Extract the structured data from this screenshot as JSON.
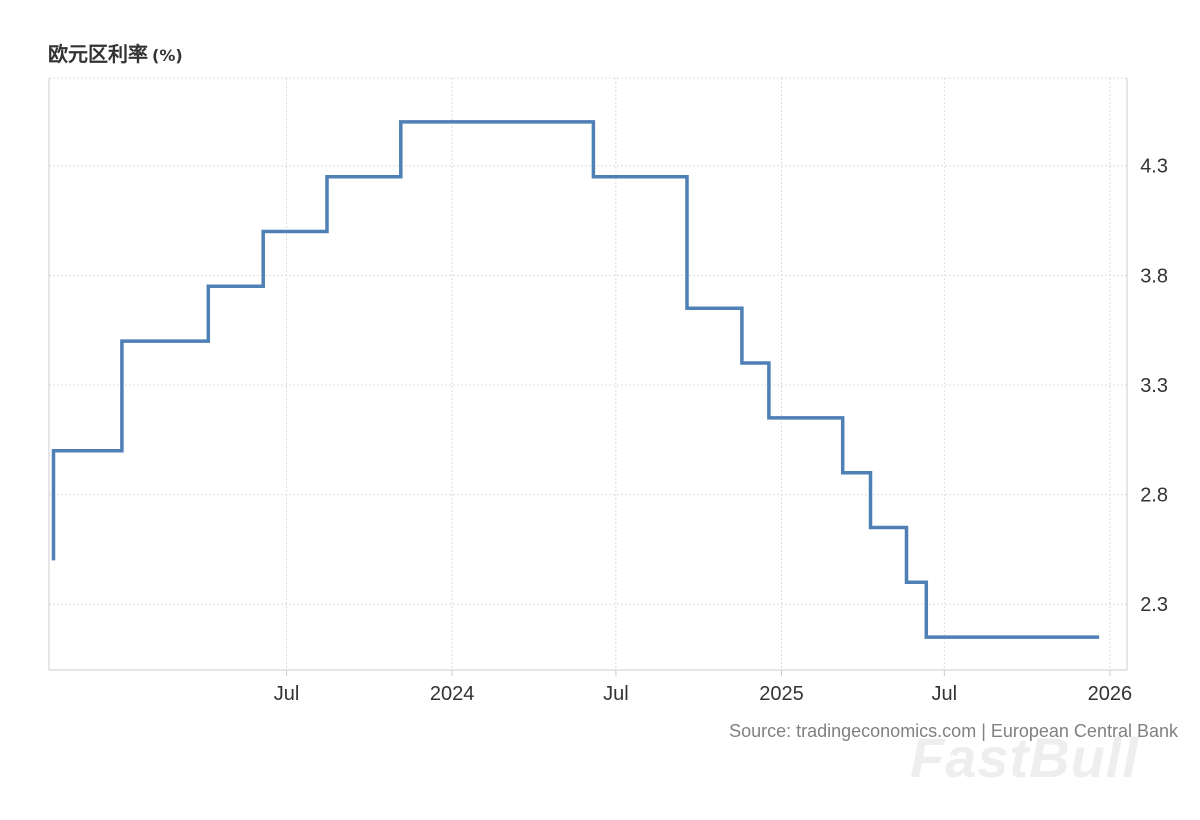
{
  "chart_data": {
    "type": "line",
    "step": true,
    "title": "欧元区利率",
    "unit": "(%)",
    "xlabel": "",
    "ylabel": "",
    "ylim": [
      2.0,
      4.7
    ],
    "y_ticks": [
      2.3,
      2.8,
      3.3,
      3.8,
      4.3
    ],
    "y_axis_side": "right",
    "grid": true,
    "x_ticks": [
      {
        "label": "Jul",
        "date": "2023-07-01"
      },
      {
        "label": "2024",
        "date": "2024-01-01"
      },
      {
        "label": "Jul",
        "date": "2024-07-01"
      },
      {
        "label": "2025",
        "date": "2025-01-01"
      },
      {
        "label": "Jul",
        "date": "2025-07-01"
      },
      {
        "label": "2026",
        "date": "2026-01-01"
      }
    ],
    "x_range": [
      "2022-10-10",
      "2026-01-20"
    ],
    "series": [
      {
        "color": "#4e7fb5",
        "points": [
          {
            "date": "2022-10-15",
            "value": 2.5
          },
          {
            "date": "2022-10-15",
            "value": 3.0
          },
          {
            "date": "2022-12-30",
            "value": 3.0
          },
          {
            "date": "2022-12-30",
            "value": 3.5
          },
          {
            "date": "2023-04-05",
            "value": 3.5
          },
          {
            "date": "2023-04-05",
            "value": 3.75
          },
          {
            "date": "2023-06-05",
            "value": 3.75
          },
          {
            "date": "2023-06-05",
            "value": 4.0
          },
          {
            "date": "2023-08-15",
            "value": 4.0
          },
          {
            "date": "2023-08-15",
            "value": 4.25
          },
          {
            "date": "2023-11-05",
            "value": 4.25
          },
          {
            "date": "2023-11-05",
            "value": 4.5
          },
          {
            "date": "2024-06-06",
            "value": 4.5
          },
          {
            "date": "2024-06-06",
            "value": 4.25
          },
          {
            "date": "2024-09-18",
            "value": 4.25
          },
          {
            "date": "2024-09-18",
            "value": 3.65
          },
          {
            "date": "2024-11-18",
            "value": 3.65
          },
          {
            "date": "2024-11-18",
            "value": 3.4
          },
          {
            "date": "2024-12-18",
            "value": 3.4
          },
          {
            "date": "2024-12-18",
            "value": 3.15
          },
          {
            "date": "2025-03-10",
            "value": 3.15
          },
          {
            "date": "2025-03-10",
            "value": 2.9
          },
          {
            "date": "2025-04-10",
            "value": 2.9
          },
          {
            "date": "2025-04-10",
            "value": 2.65
          },
          {
            "date": "2025-05-20",
            "value": 2.65
          },
          {
            "date": "2025-05-20",
            "value": 2.4
          },
          {
            "date": "2025-06-11",
            "value": 2.4
          },
          {
            "date": "2025-06-11",
            "value": 2.15
          },
          {
            "date": "2025-12-20",
            "value": 2.15
          }
        ]
      }
    ]
  },
  "source": "Source: tradingeconomics.com | European Central Bank",
  "watermark": "FastBull"
}
